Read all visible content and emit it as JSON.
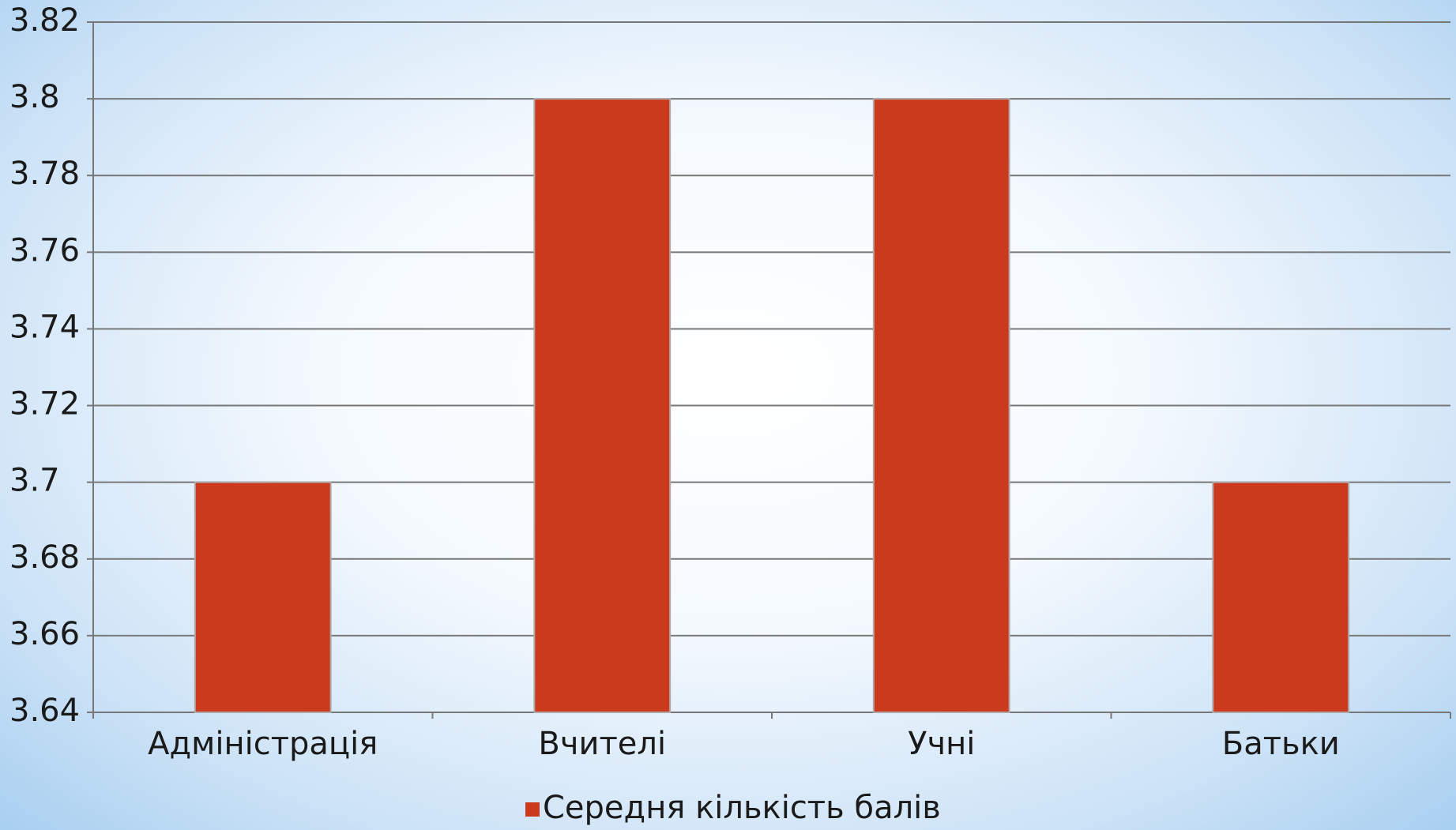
{
  "chart_data": {
    "type": "bar",
    "categories": [
      "Адміністрація",
      "Вчителі",
      "Учні",
      "Батьки"
    ],
    "series": [
      {
        "name": "Середня кількість балів",
        "color": "#cc3a1e",
        "values": [
          3.7,
          3.8,
          3.8,
          3.7
        ]
      }
    ],
    "ylim": [
      3.64,
      3.82
    ],
    "yticks": [
      3.64,
      3.66,
      3.68,
      3.7,
      3.72,
      3.74,
      3.76,
      3.78,
      3.8,
      3.82
    ],
    "grid": true,
    "legend": "bottom"
  }
}
